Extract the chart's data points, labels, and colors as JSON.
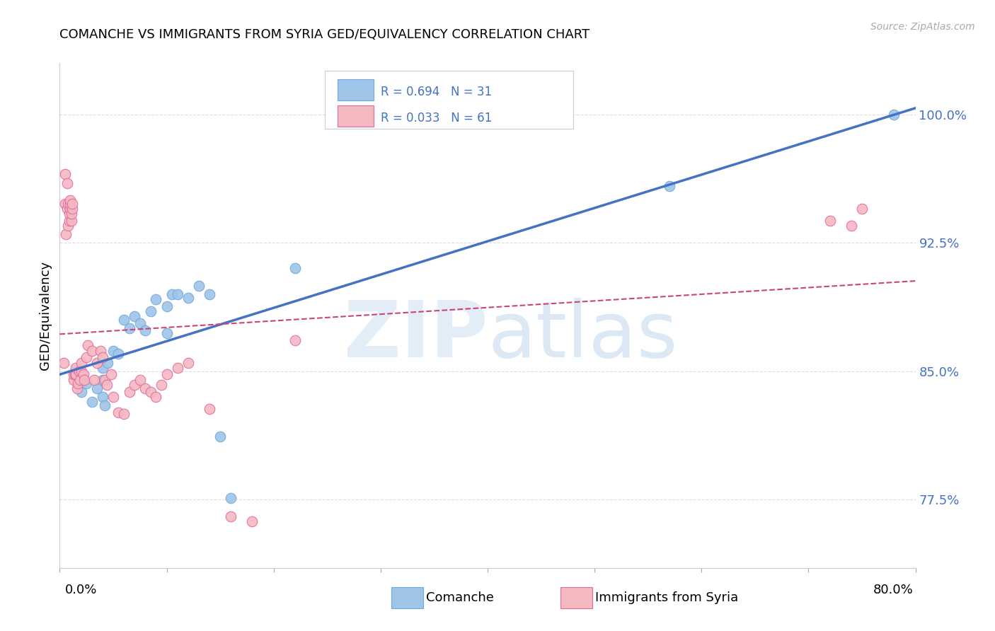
{
  "title": "COMANCHE VS IMMIGRANTS FROM SYRIA GED/EQUIVALENCY CORRELATION CHART",
  "source": "Source: ZipAtlas.com",
  "ylabel": "GED/Equivalency",
  "ytick_labels": [
    "77.5%",
    "85.0%",
    "92.5%",
    "100.0%"
  ],
  "ytick_values": [
    0.775,
    0.85,
    0.925,
    1.0
  ],
  "xlim": [
    0.0,
    0.8
  ],
  "ylim": [
    0.735,
    1.03
  ],
  "legend_r1": "R = 0.694",
  "legend_n1": "N = 31",
  "legend_r2": "R = 0.033",
  "legend_n2": "N = 61",
  "color_blue_fill": "#9fc5e8",
  "color_blue_edge": "#6fa8dc",
  "color_pink_fill": "#f4b8c1",
  "color_pink_edge": "#e06c9f",
  "color_blue_line": "#4472c4",
  "color_pink_line": "#cc4477",
  "comanche_x": [
    0.02,
    0.02,
    0.025,
    0.03,
    0.035,
    0.04,
    0.04,
    0.04,
    0.042,
    0.045,
    0.05,
    0.055,
    0.06,
    0.065,
    0.07,
    0.075,
    0.08,
    0.085,
    0.09,
    0.1,
    0.1,
    0.105,
    0.11,
    0.12,
    0.13,
    0.14,
    0.15,
    0.16,
    0.22,
    0.57,
    0.78
  ],
  "comanche_y": [
    0.848,
    0.838,
    0.843,
    0.832,
    0.84,
    0.845,
    0.835,
    0.852,
    0.83,
    0.855,
    0.862,
    0.86,
    0.88,
    0.875,
    0.882,
    0.878,
    0.874,
    0.885,
    0.892,
    0.888,
    0.872,
    0.895,
    0.895,
    0.893,
    0.9,
    0.895,
    0.812,
    0.776,
    0.91,
    0.958,
    1.0
  ],
  "syria_x": [
    0.004,
    0.005,
    0.005,
    0.006,
    0.007,
    0.007,
    0.008,
    0.008,
    0.009,
    0.009,
    0.01,
    0.01,
    0.01,
    0.011,
    0.011,
    0.012,
    0.012,
    0.013,
    0.013,
    0.014,
    0.014,
    0.015,
    0.015,
    0.016,
    0.017,
    0.018,
    0.019,
    0.02,
    0.02,
    0.022,
    0.023,
    0.025,
    0.026,
    0.03,
    0.032,
    0.035,
    0.038,
    0.04,
    0.042,
    0.044,
    0.048,
    0.05,
    0.055,
    0.06,
    0.065,
    0.07,
    0.075,
    0.08,
    0.085,
    0.09,
    0.095,
    0.1,
    0.11,
    0.12,
    0.14,
    0.16,
    0.18,
    0.22,
    0.72,
    0.74,
    0.75
  ],
  "syria_y": [
    0.855,
    0.965,
    0.948,
    0.93,
    0.96,
    0.945,
    0.935,
    0.948,
    0.938,
    0.942,
    0.945,
    0.948,
    0.95,
    0.938,
    0.942,
    0.945,
    0.948,
    0.845,
    0.848,
    0.85,
    0.848,
    0.848,
    0.852,
    0.84,
    0.843,
    0.85,
    0.845,
    0.855,
    0.85,
    0.848,
    0.845,
    0.858,
    0.865,
    0.862,
    0.845,
    0.855,
    0.862,
    0.858,
    0.845,
    0.842,
    0.848,
    0.835,
    0.826,
    0.825,
    0.838,
    0.842,
    0.845,
    0.84,
    0.838,
    0.835,
    0.842,
    0.848,
    0.852,
    0.855,
    0.828,
    0.765,
    0.762,
    0.868,
    0.938,
    0.935,
    0.945
  ]
}
